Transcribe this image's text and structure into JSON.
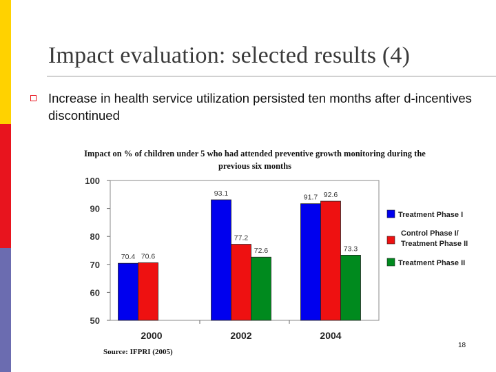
{
  "slide": {
    "title": "Impact evaluation: selected results (4)",
    "bullet_text": "Increase in health service utilization persisted ten months after d-incentives discontinued",
    "source": "Source: IFPRI (2005)",
    "page_number": "18",
    "accent_colors": [
      "#FFD200",
      "#E8141E",
      "#6B6CB0"
    ]
  },
  "chart_data": {
    "type": "bar",
    "title": "Impact on % of children under 5 who had attended preventive growth monitoring during the previous six months",
    "categories": [
      "2000",
      "2002",
      "2004"
    ],
    "ylim": [
      50,
      100
    ],
    "yticks": [
      "50",
      "60",
      "70",
      "80",
      "90",
      "100"
    ],
    "grid": false,
    "legend_position": "right",
    "series": [
      {
        "name": "Treatment Phase I",
        "color": "#0000EE",
        "values": [
          70.4,
          93.1,
          91.7
        ],
        "labels": [
          "70.4",
          "93.1",
          "91.7"
        ]
      },
      {
        "name": "Control Phase I/ Treatment Phase II",
        "color": "#EE1111",
        "values": [
          70.6,
          77.2,
          92.6
        ],
        "labels": [
          "70.6",
          "77.2",
          "92.6"
        ]
      },
      {
        "name": "Treatment Phase II",
        "color": "#008A1E",
        "values": [
          null,
          72.6,
          73.3
        ],
        "labels": [
          "",
          "72.6",
          "73.3"
        ]
      }
    ]
  }
}
